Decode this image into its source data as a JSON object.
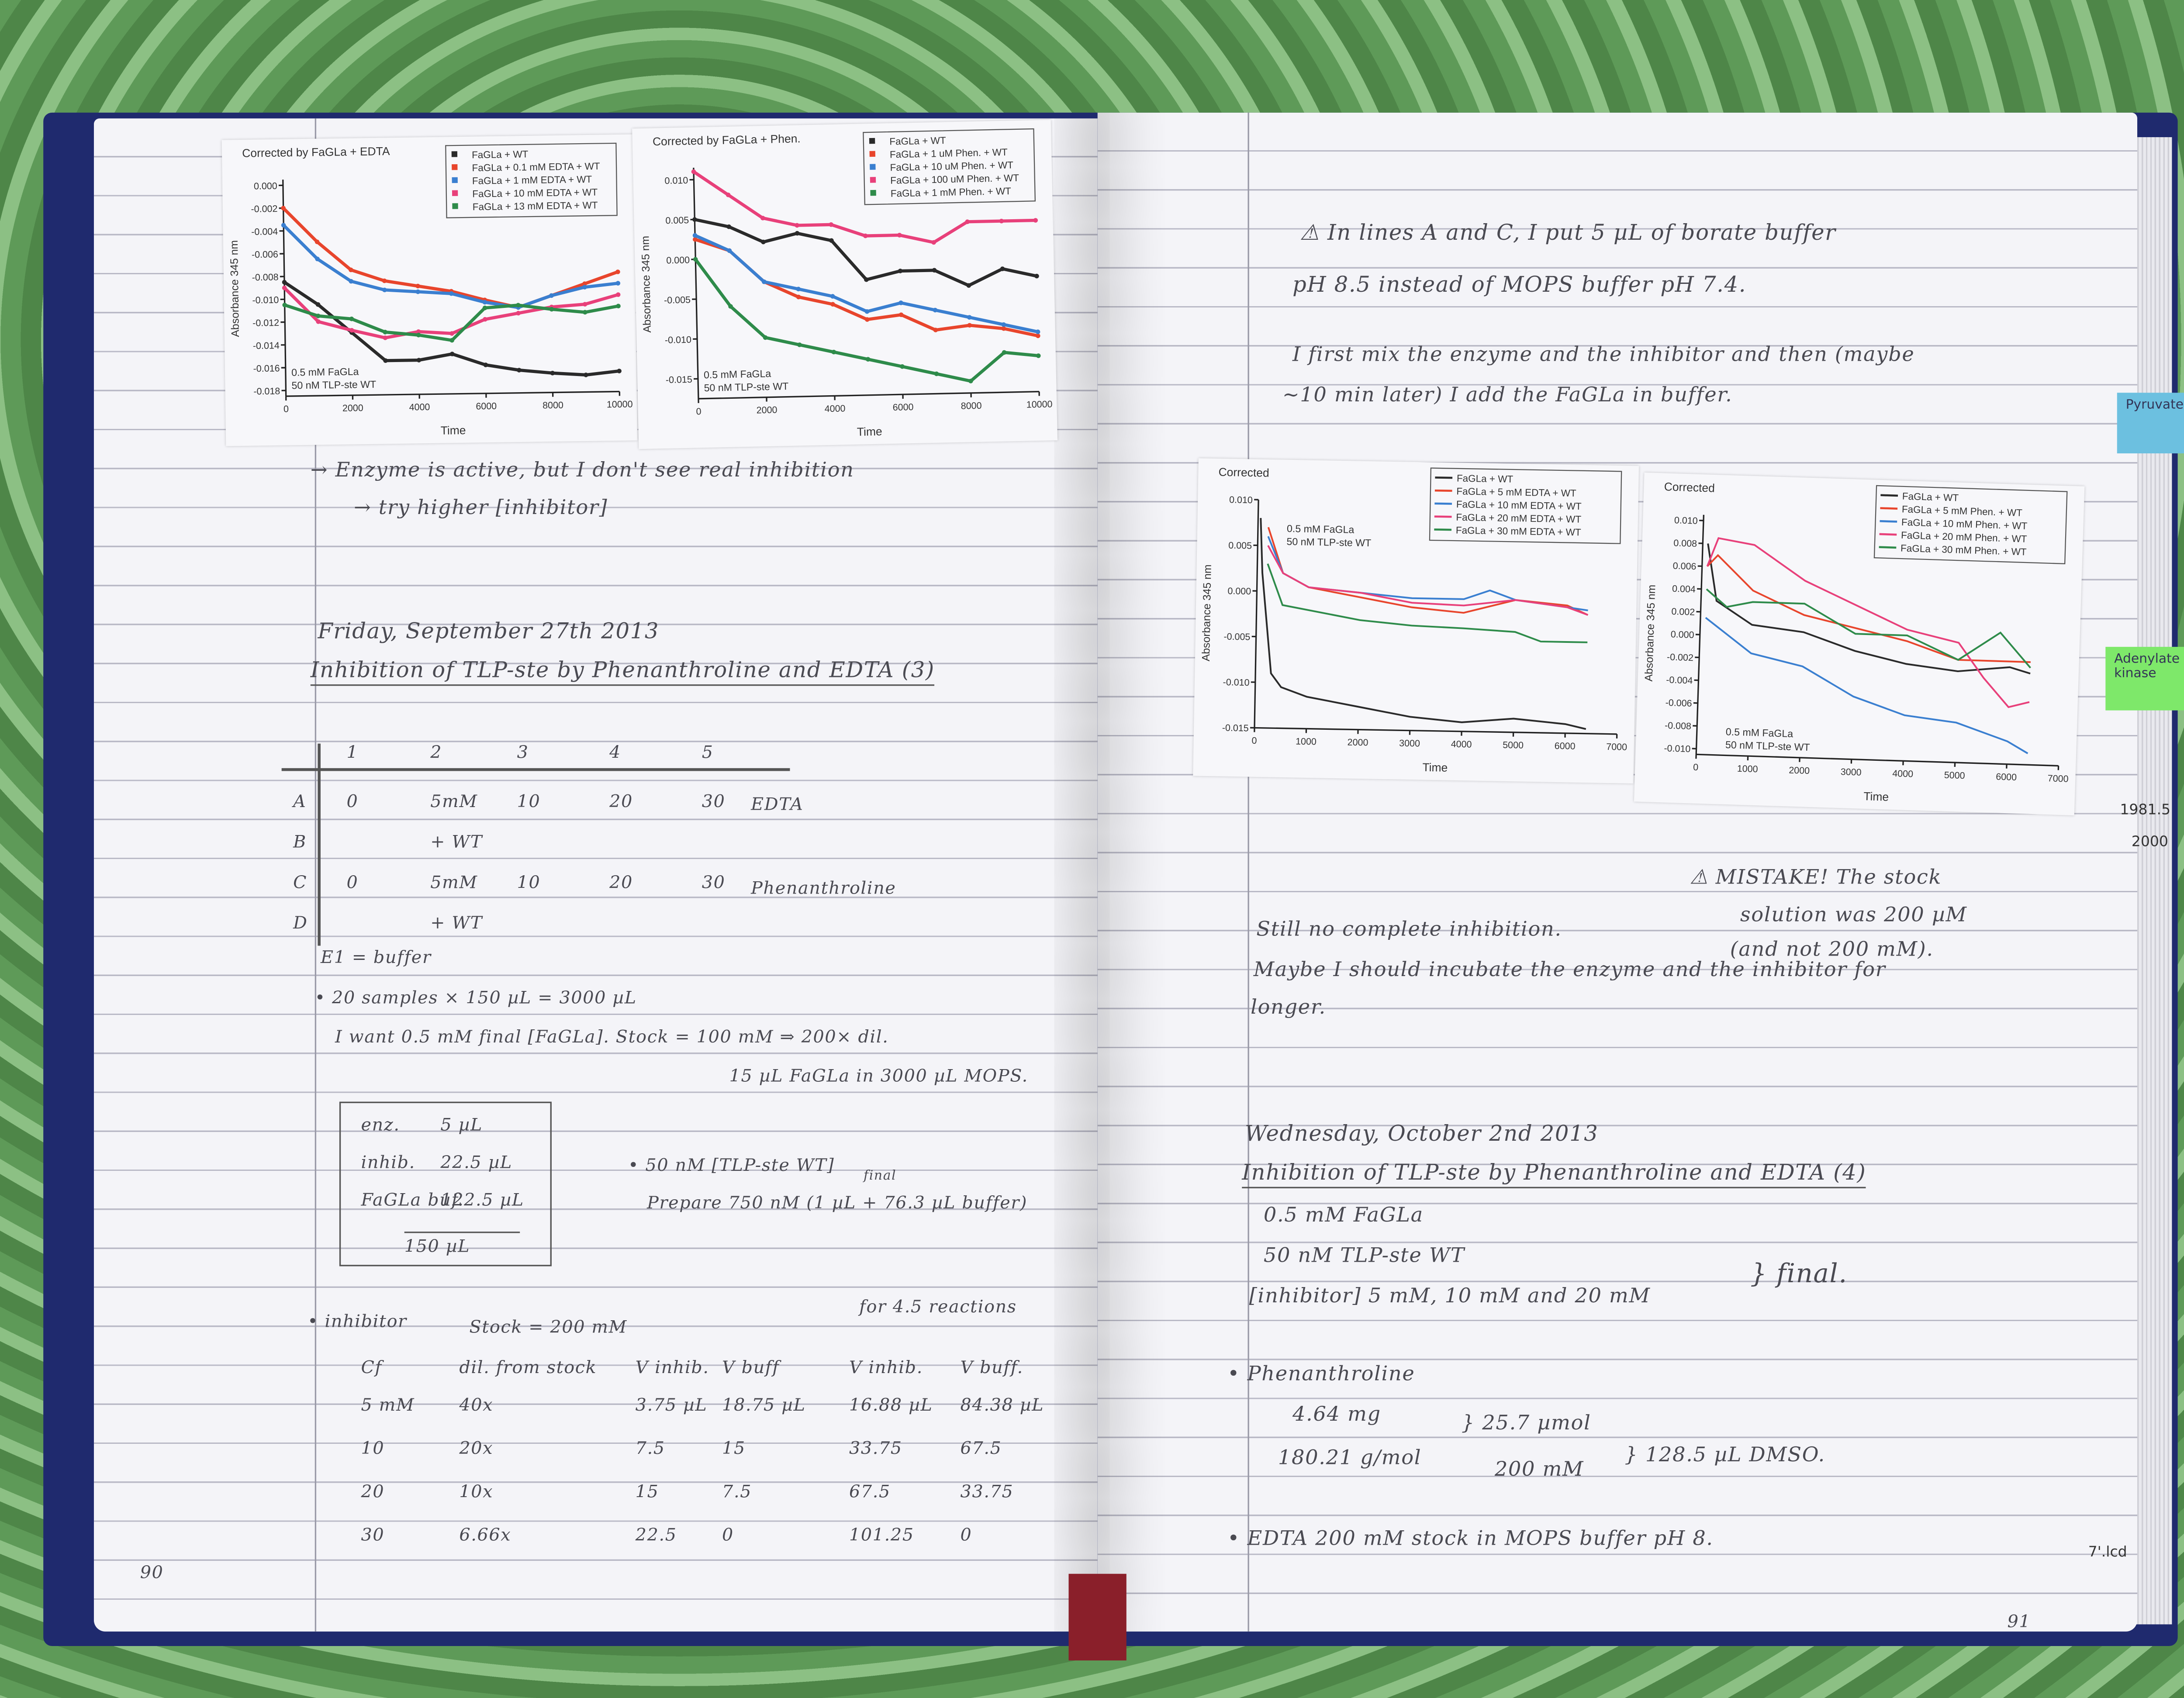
{
  "left_page": {
    "note_enzyme": "→ Enzyme is active, but I don't see real inhibition",
    "note_try": "→ try higher [inhibitor]",
    "date": "Friday, September 27th 2013",
    "title": "Inhibition of TLP-ste by Phenanthroline and EDTA (3)",
    "plate": {
      "columns": [
        "1",
        "2",
        "3",
        "4",
        "5"
      ],
      "rows": [
        {
          "label": "A",
          "cells": [
            "0",
            "5mM",
            "10",
            "20",
            "30"
          ]
        },
        {
          "label": "B",
          "cells": [
            "",
            "+ WT",
            "",
            "",
            ""
          ]
        },
        {
          "label": "C",
          "cells": [
            "0",
            "5mM",
            "10",
            "20",
            "30"
          ]
        },
        {
          "label": "D",
          "cells": [
            "",
            "+ WT",
            "",
            "",
            ""
          ]
        }
      ],
      "group_edta": "EDTA",
      "group_phen": "Phenanthroline"
    },
    "e1": "E1 = buffer",
    "samples": "• 20 samples × 150 µL = 3000 µL",
    "want": "I want 0.5 mM final [FaGLa]. Stock = 100 mM ⇒ 200× dil.",
    "fagla_vol": "15 µL FaGLa in 3000 µL MOPS.",
    "box": [
      {
        "label": "enz.",
        "value": "5 µL"
      },
      {
        "label": "inhib.",
        "value": "22.5 µL"
      },
      {
        "label": "FaGLa buf.",
        "value": "122.5 µL"
      }
    ],
    "box_total": "150 µL",
    "tlp": "• 50 nM [TLP-ste WT]",
    "tlp_final": "final",
    "prepare": "Prepare 750 nM (1 µL + 76.3 µL buffer)",
    "inhibitor": "• inhibitor",
    "stock": "Stock = 200 mM",
    "reactions": "for 4.5 reactions",
    "dil_table": {
      "headers": [
        "Cf",
        "dil. from stock",
        "V inhib.",
        "V buff",
        "V inhib.",
        "V buff."
      ],
      "rows": [
        [
          "5 mM",
          "40x",
          "3.75 µL",
          "18.75 µL",
          "16.88 µL",
          "84.38 µL"
        ],
        [
          "10",
          "20x",
          "7.5",
          "15",
          "33.75",
          "67.5"
        ],
        [
          "20",
          "10x",
          "15",
          "7.5",
          "67.5",
          "33.75"
        ],
        [
          "30",
          "6.66x",
          "22.5",
          "0",
          "101.25",
          "0"
        ]
      ]
    },
    "page_number": "90"
  },
  "right_page": {
    "warn1": "⚠ In lines A and C, I put 5 µL of borate buffer",
    "warn2": "pH 8.5 instead of MOPS buffer pH 7.4.",
    "mix1": "I first mix the enzyme and the inhibitor and then (maybe",
    "mix2": "~10 min later) I add the FaGLa in buffer.",
    "mistake1": "⚠ MISTAKE! The stock",
    "mistake2": "solution was 200 µM",
    "mistake3": "(and not 200 mM).",
    "still": "Still no complete inhibition.",
    "maybe": "Maybe I should incubate the enzyme and the inhibitor for",
    "longer": "longer.",
    "date": "Wednesday, October 2nd 2013",
    "title": "Inhibition of TLP-ste by Phenanthroline and EDTA (4)",
    "cond1": "0.5 mM FaGLa",
    "cond2": "50 nM TLP-ste WT",
    "cond3": "[inhibitor] 5 mM, 10 mM and 20 mM",
    "cond_final": "} final.",
    "phen": "• Phenanthroline",
    "mass": "4.64 mg",
    "mw": "180.21 g/mol",
    "umol": "} 25.7 µmol",
    "conc": "200 mM",
    "dmso": "} 128.5 µL DMSO.",
    "edta": "• EDTA   200 mM stock in MOPS buffer pH 8.",
    "page_number": "91",
    "sticky_blue": "Pyruvate …",
    "sticky_green": "Adenylate kinase",
    "tab_top": "1981.5",
    "tab_bottom": "2000",
    "file_label": "7'.lcd"
  },
  "chart_data": [
    {
      "type": "scatter",
      "title": "Corrected by FaGLa + EDTA",
      "xlabel": "Time",
      "ylabel": "Absorbance 345 nm",
      "xlim": [
        0,
        10000
      ],
      "ylim": [
        -0.0185,
        0.0005
      ],
      "xticks": [
        "0",
        "2000",
        "4000",
        "6000",
        "8000",
        "10000"
      ],
      "yticks": [
        "0.000",
        "-0.002",
        "-0.004",
        "-0.006",
        "-0.008",
        "-0.010",
        "-0.012",
        "-0.014",
        "-0.016",
        "-0.018"
      ],
      "annotation": [
        "0.5 mM FaGLa",
        "50 nM TLP-ste WT"
      ],
      "annotation_place": "bottom-left",
      "legend": "top-right",
      "grid": false,
      "series": [
        {
          "name": "FaGLa + WT",
          "color": "#2a2a2a",
          "marker": "square",
          "x": [
            0,
            1000,
            2000,
            3000,
            4000,
            5000,
            6000,
            7000,
            8000,
            9000,
            10000
          ],
          "y": [
            -0.0085,
            -0.0105,
            -0.013,
            -0.0155,
            -0.0155,
            -0.015,
            -0.016,
            -0.0165,
            -0.0168,
            -0.017,
            -0.0167
          ]
        },
        {
          "name": "FaGLa + 0.1 mM EDTA + WT",
          "color": "#e8452c",
          "marker": "circle",
          "x": [
            0,
            1000,
            2000,
            3000,
            4000,
            5000,
            6000,
            7000,
            8000,
            9000,
            10000
          ],
          "y": [
            -0.002,
            -0.005,
            -0.0075,
            -0.0085,
            -0.009,
            -0.0095,
            -0.0103,
            -0.011,
            -0.01,
            -0.009,
            -0.008
          ]
        },
        {
          "name": "FaGLa + 1 mM EDTA + WT",
          "color": "#3a7fd0",
          "marker": "triangle-up",
          "x": [
            0,
            1000,
            2000,
            3000,
            4000,
            5000,
            6000,
            7000,
            8000,
            9000,
            10000
          ],
          "y": [
            -0.0035,
            -0.0065,
            -0.0085,
            -0.0093,
            -0.0095,
            -0.0097,
            -0.0105,
            -0.011,
            -0.01,
            -0.0093,
            -0.009
          ]
        },
        {
          "name": "FaGLa + 10 mM EDTA + WT",
          "color": "#e8407a",
          "marker": "triangle-down",
          "x": [
            0,
            1000,
            2000,
            3000,
            4000,
            5000,
            6000,
            7000,
            8000,
            9000,
            10000
          ],
          "y": [
            -0.009,
            -0.012,
            -0.0128,
            -0.0135,
            -0.013,
            -0.0132,
            -0.012,
            -0.0115,
            -0.011,
            -0.0108,
            -0.01
          ]
        },
        {
          "name": "FaGLa + 13 mM EDTA + WT",
          "color": "#2e8b4a",
          "marker": "diamond",
          "x": [
            0,
            1000,
            2000,
            3000,
            4000,
            5000,
            6000,
            7000,
            8000,
            9000,
            10000
          ],
          "y": [
            -0.0105,
            -0.0115,
            -0.0118,
            -0.013,
            -0.0133,
            -0.0138,
            -0.011,
            -0.0108,
            -0.0112,
            -0.0115,
            -0.011
          ]
        }
      ]
    },
    {
      "type": "scatter",
      "title": "Corrected by FaGLa + Phen.",
      "xlabel": "Time",
      "ylabel": "Absorbance 345 nm",
      "xlim": [
        0,
        10000
      ],
      "ylim": [
        -0.0175,
        0.0115
      ],
      "xticks": [
        "0",
        "2000",
        "4000",
        "6000",
        "8000",
        "10000"
      ],
      "yticks": [
        "0.010",
        "0.005",
        "0.000",
        "-0.005",
        "-0.010",
        "-0.015"
      ],
      "annotation": [
        "0.5 mM FaGLa",
        "50 nM TLP-ste WT"
      ],
      "annotation_place": "bottom-left",
      "legend": "top-right",
      "grid": false,
      "series": [
        {
          "name": "FaGLa + WT",
          "color": "#2a2a2a",
          "marker": "square",
          "x": [
            0,
            1000,
            2000,
            3000,
            4000,
            5000,
            6000,
            7000,
            8000,
            9000,
            10000
          ],
          "y": [
            0.005,
            0.004,
            0.002,
            0.003,
            0.002,
            -0.003,
            -0.002,
            -0.002,
            -0.004,
            -0.002,
            -0.003
          ]
        },
        {
          "name": "FaGLa + 1 uM Phen. + WT",
          "color": "#e8452c",
          "marker": "circle",
          "x": [
            0,
            1000,
            2000,
            3000,
            4000,
            5000,
            6000,
            7000,
            8000,
            9000,
            10000
          ],
          "y": [
            0.0025,
            0.001,
            -0.003,
            -0.005,
            -0.006,
            -0.008,
            -0.0075,
            -0.0095,
            -0.009,
            -0.0095,
            -0.0105
          ]
        },
        {
          "name": "FaGLa + 10 uM Phen. + WT",
          "color": "#3a7fd0",
          "marker": "triangle-up",
          "x": [
            0,
            1000,
            2000,
            3000,
            4000,
            5000,
            6000,
            7000,
            8000,
            9000,
            10000
          ],
          "y": [
            0.003,
            0.001,
            -0.003,
            -0.004,
            -0.005,
            -0.007,
            -0.006,
            -0.007,
            -0.008,
            -0.009,
            -0.01
          ]
        },
        {
          "name": "FaGLa + 100 uM Phen. + WT",
          "color": "#e8407a",
          "marker": "triangle-down",
          "x": [
            0,
            1000,
            2000,
            3000,
            4000,
            5000,
            6000,
            7000,
            8000,
            9000,
            10000
          ],
          "y": [
            0.011,
            0.008,
            0.005,
            0.004,
            0.004,
            0.0025,
            0.0025,
            0.0015,
            0.004,
            0.004,
            0.004
          ]
        },
        {
          "name": "FaGLa + 1 mM Phen. + WT",
          "color": "#2e8b4a",
          "marker": "diamond",
          "x": [
            0,
            1000,
            2000,
            3000,
            4000,
            5000,
            6000,
            7000,
            8000,
            9000,
            10000
          ],
          "y": [
            0.0,
            -0.006,
            -0.01,
            -0.011,
            -0.012,
            -0.013,
            -0.014,
            -0.015,
            -0.016,
            -0.0125,
            -0.013
          ]
        }
      ]
    },
    {
      "type": "line",
      "title": "Corrected",
      "xlabel": "Time",
      "ylabel": "Absorbance 345 nm",
      "xlim": [
        0,
        7000
      ],
      "ylim": [
        -0.015,
        0.01
      ],
      "xticks": [
        "0",
        "1000",
        "2000",
        "3000",
        "4000",
        "5000",
        "6000",
        "7000"
      ],
      "yticks": [
        "0.010",
        "0.005",
        "0.000",
        "-0.005",
        "-0.010",
        "-0.015"
      ],
      "annotation": [
        "0.5 mM FaGLa",
        "50 nM TLP-ste WT"
      ],
      "annotation_place": "top-left",
      "legend": "top-right",
      "grid": false,
      "series": [
        {
          "name": "FaGLa + WT",
          "color": "#2a2a2a",
          "x": [
            50,
            100,
            300,
            500,
            1000,
            2000,
            3000,
            4000,
            5000,
            6000,
            6400
          ],
          "y": [
            0.008,
            0.002,
            -0.009,
            -0.0105,
            -0.0115,
            -0.0125,
            -0.0135,
            -0.014,
            -0.0135,
            -0.014,
            -0.0145
          ]
        },
        {
          "name": "FaGLa + 5 mM EDTA + WT",
          "color": "#e8452c",
          "x": [
            200,
            500,
            1000,
            2000,
            3000,
            4000,
            5000,
            6000,
            6400
          ],
          "y": [
            0.007,
            0.002,
            0.0005,
            -0.0005,
            -0.0015,
            -0.002,
            -0.0005,
            -0.001,
            -0.002
          ]
        },
        {
          "name": "FaGLa + 10 mM EDTA + WT",
          "color": "#3a7fd0",
          "x": [
            200,
            500,
            1000,
            2000,
            3000,
            4000,
            4500,
            5000,
            6000,
            6400
          ],
          "y": [
            0.006,
            0.002,
            0.0005,
            0.0,
            -0.0005,
            -0.0005,
            0.0005,
            -0.0005,
            -0.0012,
            -0.0015
          ]
        },
        {
          "name": "FaGLa + 20 mM EDTA + WT",
          "color": "#e8407a",
          "x": [
            200,
            500,
            1000,
            2000,
            3000,
            4000,
            5000,
            6000,
            6400
          ],
          "y": [
            0.005,
            0.002,
            0.0005,
            0.0,
            -0.001,
            -0.0012,
            -0.0005,
            -0.0012,
            -0.002
          ]
        },
        {
          "name": "FaGLa + 30 mM EDTA + WT",
          "color": "#2e8b4a",
          "x": [
            200,
            500,
            1000,
            2000,
            3000,
            4000,
            5000,
            5500,
            6000,
            6400
          ],
          "y": [
            0.003,
            -0.0015,
            -0.002,
            -0.003,
            -0.0035,
            -0.0037,
            -0.004,
            -0.005,
            -0.005,
            -0.005
          ]
        }
      ]
    },
    {
      "type": "line",
      "title": "Corrected",
      "xlabel": "Time",
      "ylabel": "Absorbance 345 nm",
      "xlim": [
        0,
        7000
      ],
      "ylim": [
        -0.0105,
        0.0105
      ],
      "xticks": [
        "0",
        "1000",
        "2000",
        "3000",
        "4000",
        "5000",
        "6000",
        "7000"
      ],
      "yticks": [
        "0.010",
        "0.008",
        "0.006",
        "0.004",
        "0.002",
        "0.000",
        "-0.002",
        "-0.004",
        "-0.006",
        "-0.008",
        "-0.010"
      ],
      "annotation": [
        "0.5 mM FaGLa",
        "50 nM TLP-ste WT"
      ],
      "annotation_place": "bottom-left",
      "legend": "top-right",
      "grid": false,
      "series": [
        {
          "name": "FaGLa + WT",
          "color": "#2a2a2a",
          "x": [
            100,
            300,
            1000,
            2000,
            3000,
            4000,
            5000,
            6000,
            6400
          ],
          "y": [
            0.008,
            0.003,
            0.001,
            0.0005,
            -0.001,
            -0.002,
            -0.0025,
            -0.002,
            -0.0025
          ]
        },
        {
          "name": "FaGLa + 5 mM Phen. + WT",
          "color": "#e8452c",
          "x": [
            100,
            300,
            1000,
            2000,
            3000,
            4000,
            5000,
            6000,
            6400
          ],
          "y": [
            0.006,
            0.007,
            0.004,
            0.002,
            0.001,
            0.0,
            -0.0015,
            -0.0015,
            -0.0015
          ]
        },
        {
          "name": "FaGLa + 10 mM Phen. + WT",
          "color": "#3a7fd0",
          "x": [
            100,
            1000,
            2000,
            3000,
            4000,
            5000,
            6000,
            6400
          ],
          "y": [
            0.0015,
            -0.0015,
            -0.0025,
            -0.005,
            -0.0065,
            -0.007,
            -0.0085,
            -0.0095
          ]
        },
        {
          "name": "FaGLa + 20 mM Phen. + WT",
          "color": "#e8407a",
          "x": [
            100,
            300,
            1000,
            2000,
            3000,
            4000,
            5000,
            5500,
            6000,
            6400
          ],
          "y": [
            0.006,
            0.0085,
            0.008,
            0.005,
            0.003,
            0.001,
            0.0,
            -0.003,
            -0.0055,
            -0.005
          ]
        },
        {
          "name": "FaGLa + 30 mM Phen. + WT",
          "color": "#2e8b4a",
          "x": [
            100,
            500,
            1000,
            2000,
            3000,
            4000,
            5000,
            5800,
            6400
          ],
          "y": [
            0.004,
            0.0025,
            0.003,
            0.003,
            0.0005,
            0.0005,
            -0.0015,
            0.001,
            -0.002
          ]
        }
      ]
    }
  ]
}
